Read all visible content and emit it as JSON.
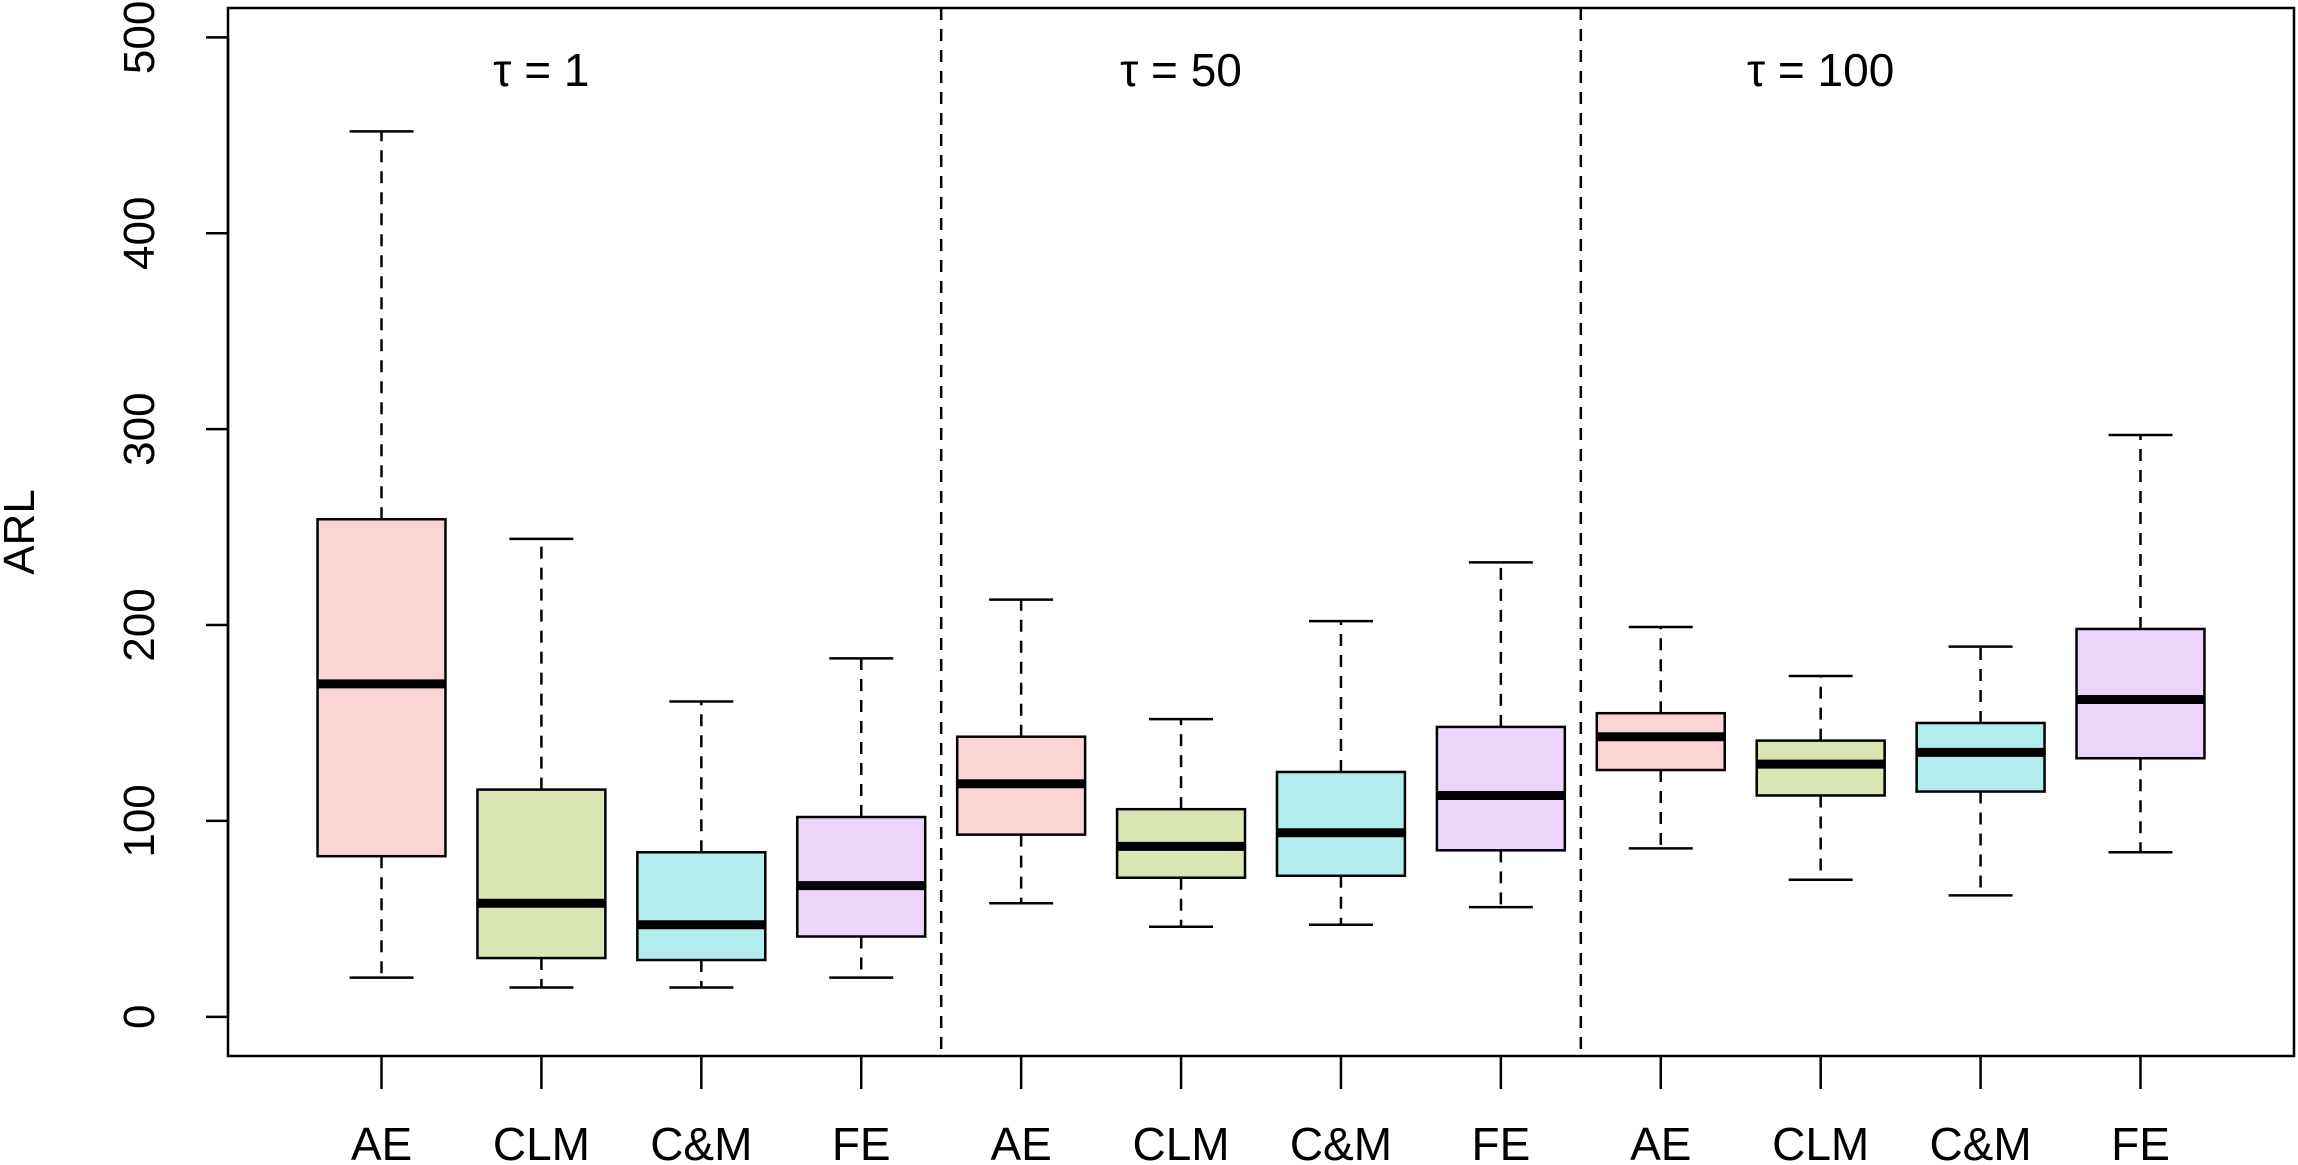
{
  "chart_data": {
    "type": "box",
    "ylabel": "ARL",
    "ylim": [
      -20,
      515
    ],
    "yticks": [
      0,
      100,
      200,
      300,
      400,
      500
    ],
    "categories": [
      "AE",
      "CLM",
      "C&M",
      "FE",
      "AE",
      "CLM",
      "C&M",
      "FE",
      "AE",
      "CLM",
      "C&M",
      "FE"
    ],
    "groups": [
      {
        "label": "τ = 1",
        "from": 0,
        "to": 3
      },
      {
        "label": "τ = 50",
        "from": 4,
        "to": 7
      },
      {
        "label": "τ = 100",
        "from": 8,
        "to": 11
      }
    ],
    "colors": {
      "AE": "#fbd5d5",
      "CLM": "#d9e6b4",
      "C&M": "#b3ecec",
      "FE": "#ecd5fb",
      "line": "#000000"
    },
    "boxes": [
      {
        "category": "AE",
        "group": "τ = 1",
        "min": 20,
        "q1": 82,
        "median": 170,
        "q3": 254,
        "max": 452
      },
      {
        "category": "CLM",
        "group": "τ = 1",
        "min": 15,
        "q1": 30,
        "median": 58,
        "q3": 116,
        "max": 244
      },
      {
        "category": "C&M",
        "group": "τ = 1",
        "min": 15,
        "q1": 29,
        "median": 47,
        "q3": 84,
        "max": 161
      },
      {
        "category": "FE",
        "group": "τ = 1",
        "min": 20,
        "q1": 41,
        "median": 67,
        "q3": 102,
        "max": 183
      },
      {
        "category": "AE",
        "group": "τ = 50",
        "min": 58,
        "q1": 93,
        "median": 119,
        "q3": 143,
        "max": 213
      },
      {
        "category": "CLM",
        "group": "τ = 50",
        "min": 46,
        "q1": 71,
        "median": 87,
        "q3": 106,
        "max": 152
      },
      {
        "category": "C&M",
        "group": "τ = 50",
        "min": 47,
        "q1": 72,
        "median": 94,
        "q3": 125,
        "max": 202
      },
      {
        "category": "FE",
        "group": "τ = 50",
        "min": 56,
        "q1": 85,
        "median": 113,
        "q3": 148,
        "max": 232
      },
      {
        "category": "AE",
        "group": "τ = 100",
        "min": 86,
        "q1": 126,
        "median": 143,
        "q3": 155,
        "max": 199
      },
      {
        "category": "CLM",
        "group": "τ = 100",
        "min": 70,
        "q1": 113,
        "median": 129,
        "q3": 141,
        "max": 174
      },
      {
        "category": "C&M",
        "group": "τ = 100",
        "min": 62,
        "q1": 115,
        "median": 135,
        "q3": 150,
        "max": 189
      },
      {
        "category": "FE",
        "group": "τ = 100",
        "min": 84,
        "q1": 132,
        "median": 162,
        "q3": 198,
        "max": 297
      }
    ]
  }
}
